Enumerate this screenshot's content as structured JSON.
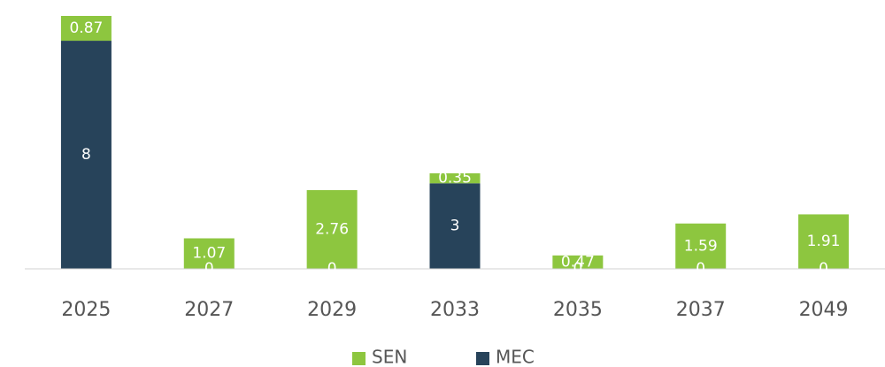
{
  "chart_data": {
    "type": "stacked_bar",
    "categories": [
      "2025",
      "2027",
      "2029",
      "2033",
      "2035",
      "2037",
      "2049"
    ],
    "series": [
      {
        "name": "MEC",
        "color": "#27435a",
        "values": [
          8,
          0,
          0,
          3,
          0,
          0,
          0
        ]
      },
      {
        "name": "SEN",
        "color": "#8dc63f",
        "values": [
          0.87,
          1.07,
          2.76,
          0.35,
          0.47,
          1.59,
          1.91
        ]
      }
    ]
  }
}
